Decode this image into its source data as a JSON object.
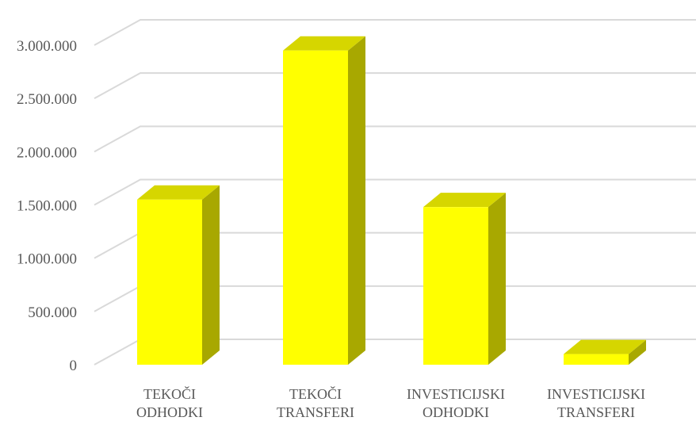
{
  "chart_data": {
    "type": "bar",
    "title": "",
    "xlabel": "",
    "ylabel": "",
    "categories": [
      [
        "TEKOČI",
        "ODHODKI"
      ],
      [
        "TEKOČI",
        "TRANSFERI"
      ],
      [
        "INVESTICIJSKI",
        "ODHODKI"
      ],
      [
        "INVESTICIJSKI",
        "TRANSFERI"
      ]
    ],
    "values": [
      1550000,
      2950000,
      1480000,
      100000
    ],
    "ylim": [
      0,
      3000000
    ],
    "yticks": [
      0,
      500000,
      1000000,
      1500000,
      2000000,
      2500000,
      3000000
    ],
    "ytick_labels": [
      "0",
      "500.000",
      "1.000.000",
      "1.500.000",
      "2.000.000",
      "2.500.000",
      "3.000.000"
    ],
    "grid": true,
    "legend": "none",
    "style": "3d-column",
    "colors": {
      "bar_front": "#ffff00",
      "bar_top": "#d6d600",
      "bar_side": "#a8a800",
      "grid": "#d9d9d9",
      "text": "#595959"
    }
  }
}
